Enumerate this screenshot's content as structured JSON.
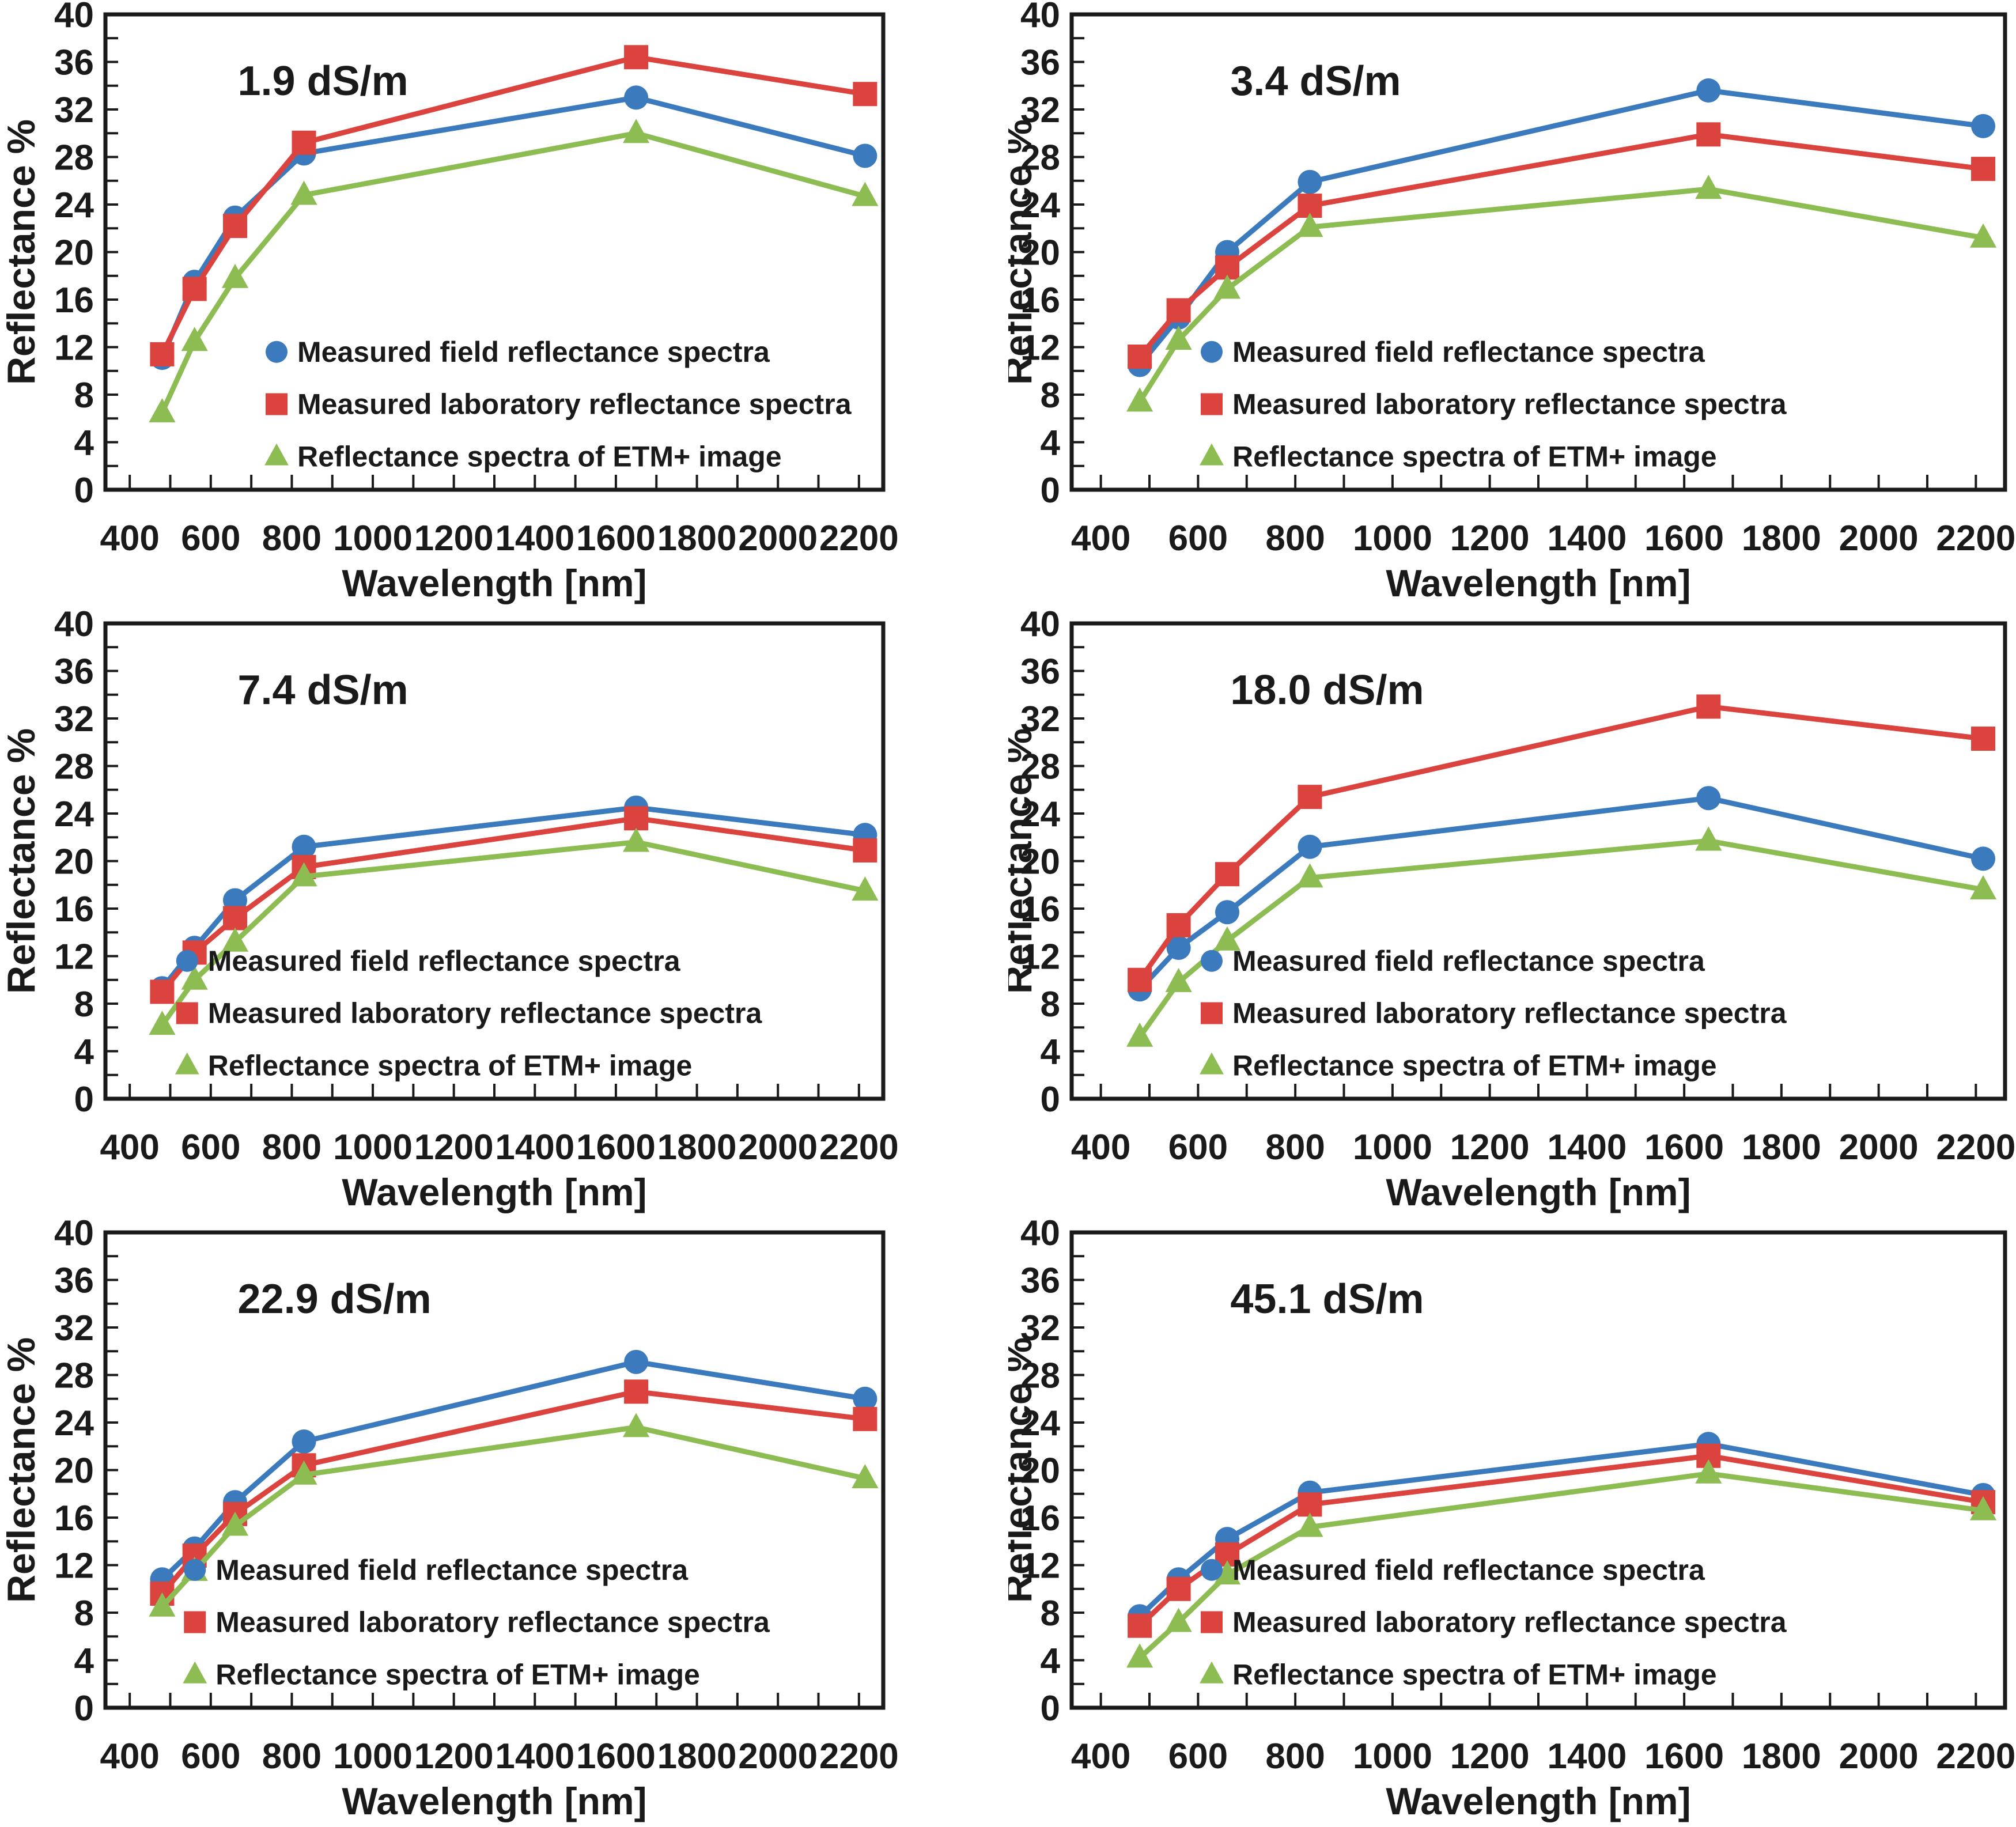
{
  "figure": {
    "layout": "3 rows x 2 columns of line charts",
    "background": "#ffffff",
    "text_color": "#1a1a1a",
    "series_colors": {
      "field": "#3a7abd",
      "lab": "#da433e",
      "etm": "#8dbc53"
    },
    "marker_shapes": {
      "field": "circle",
      "lab": "square",
      "etm": "triangle"
    },
    "legend_labels": [
      "Measured field reflectance spectra",
      "Measured laboratory reflectance spectra",
      "Reflectance spectra of ETM+ image"
    ]
  },
  "chart_data": [
    {
      "type": "line",
      "title": "1.9 dS/m",
      "xlabel": "Wavelength [nm]",
      "ylabel": "Reflectance %",
      "xlim": [
        340,
        2260
      ],
      "ylim": [
        0,
        40
      ],
      "x_ticks_labeled": [
        400,
        600,
        800,
        1000,
        1200,
        1400,
        1600,
        1800,
        2000,
        2200
      ],
      "x_minor_tick_step": 100,
      "y_ticks_labeled": [
        0,
        4,
        8,
        12,
        16,
        20,
        24,
        28,
        32,
        36,
        40
      ],
      "y_minor_tick_step": 2,
      "grid": false,
      "legend_position": "inside-lower",
      "x": [
        480,
        560,
        660,
        830,
        1650,
        2215
      ],
      "series": [
        {
          "name": "Measured field reflectance spectra",
          "key": "field",
          "marker": "circle",
          "values": [
            11.1,
            17.5,
            22.9,
            28.3,
            33.0,
            28.1
          ]
        },
        {
          "name": "Measured laboratory reflectance spectra",
          "key": "lab",
          "marker": "square",
          "values": [
            11.4,
            16.9,
            22.2,
            29.2,
            36.4,
            33.3
          ]
        },
        {
          "name": "Reflectance spectra of ETM+ image",
          "key": "etm",
          "marker": "triangle",
          "values": [
            6.5,
            12.5,
            17.8,
            24.8,
            30.0,
            24.7
          ]
        }
      ]
    },
    {
      "type": "line",
      "title": "3.4 dS/m",
      "xlabel": "Wavelength [nm]",
      "ylabel": "Reflectance %",
      "xlim": [
        340,
        2260
      ],
      "ylim": [
        0,
        40
      ],
      "x_ticks_labeled": [
        400,
        600,
        800,
        1000,
        1200,
        1400,
        1600,
        1800,
        2000,
        2200
      ],
      "x_minor_tick_step": 100,
      "y_ticks_labeled": [
        0,
        4,
        8,
        12,
        16,
        20,
        24,
        28,
        32,
        36,
        40
      ],
      "y_minor_tick_step": 2,
      "grid": false,
      "legend_position": "inside-lower",
      "x": [
        480,
        560,
        660,
        830,
        1650,
        2215
      ],
      "series": [
        {
          "name": "Measured field reflectance spectra",
          "key": "field",
          "marker": "circle",
          "values": [
            10.5,
            14.5,
            20.0,
            25.9,
            33.6,
            30.6
          ]
        },
        {
          "name": "Measured laboratory reflectance spectra",
          "key": "lab",
          "marker": "square",
          "values": [
            11.2,
            15.1,
            18.7,
            23.9,
            29.9,
            27.0
          ]
        },
        {
          "name": "Reflectance spectra of ETM+ image",
          "key": "etm",
          "marker": "triangle",
          "values": [
            7.4,
            12.6,
            16.9,
            22.1,
            25.3,
            21.2
          ]
        }
      ]
    },
    {
      "type": "line",
      "title": "7.4 dS/m",
      "xlabel": "Wavelength [nm]",
      "ylabel": "Reflectance %",
      "xlim": [
        340,
        2260
      ],
      "ylim": [
        0,
        40
      ],
      "x_ticks_labeled": [
        400,
        600,
        800,
        1000,
        1200,
        1400,
        1600,
        1800,
        2000,
        2200
      ],
      "x_minor_tick_step": 100,
      "y_ticks_labeled": [
        0,
        4,
        8,
        12,
        16,
        20,
        24,
        28,
        32,
        36,
        40
      ],
      "y_minor_tick_step": 2,
      "grid": false,
      "legend_position": "inside-lower",
      "x": [
        480,
        560,
        660,
        830,
        1650,
        2215
      ],
      "series": [
        {
          "name": "Measured field reflectance spectra",
          "key": "field",
          "marker": "circle",
          "values": [
            9.3,
            12.7,
            16.7,
            21.2,
            24.5,
            22.2
          ]
        },
        {
          "name": "Measured laboratory reflectance spectra",
          "key": "lab",
          "marker": "square",
          "values": [
            9.0,
            12.3,
            15.2,
            19.5,
            23.6,
            20.9
          ]
        },
        {
          "name": "Reflectance spectra of ETM+ image",
          "key": "etm",
          "marker": "triangle",
          "values": [
            6.2,
            10.0,
            13.2,
            18.7,
            21.6,
            17.5
          ]
        }
      ]
    },
    {
      "type": "line",
      "title": "18.0 dS/m",
      "xlabel": "Wavelength [nm]",
      "ylabel": "Reflectance %",
      "xlim": [
        340,
        2260
      ],
      "ylim": [
        0,
        40
      ],
      "x_ticks_labeled": [
        400,
        600,
        800,
        1000,
        1200,
        1400,
        1600,
        1800,
        2000,
        2200
      ],
      "x_minor_tick_step": 100,
      "y_ticks_labeled": [
        0,
        4,
        8,
        12,
        16,
        20,
        24,
        28,
        32,
        36,
        40
      ],
      "y_minor_tick_step": 2,
      "grid": false,
      "legend_position": "inside-lower",
      "x": [
        480,
        560,
        660,
        830,
        1650,
        2215
      ],
      "series": [
        {
          "name": "Measured field reflectance spectra",
          "key": "field",
          "marker": "circle",
          "values": [
            9.2,
            12.7,
            15.7,
            21.2,
            25.3,
            20.2
          ]
        },
        {
          "name": "Measured laboratory reflectance spectra",
          "key": "lab",
          "marker": "square",
          "values": [
            10.0,
            14.6,
            18.9,
            25.4,
            33.0,
            30.3
          ]
        },
        {
          "name": "Reflectance spectra of ETM+ image",
          "key": "etm",
          "marker": "triangle",
          "values": [
            5.2,
            9.8,
            13.3,
            18.6,
            21.7,
            17.6
          ]
        }
      ]
    },
    {
      "type": "line",
      "title": "22.9 dS/m",
      "xlabel": "Wavelength [nm]",
      "ylabel": "Reflectance %",
      "xlim": [
        340,
        2260
      ],
      "ylim": [
        0,
        40
      ],
      "x_ticks_labeled": [
        400,
        600,
        800,
        1000,
        1200,
        1400,
        1600,
        1800,
        2000,
        2200
      ],
      "x_minor_tick_step": 100,
      "y_ticks_labeled": [
        0,
        4,
        8,
        12,
        16,
        20,
        24,
        28,
        32,
        36,
        40
      ],
      "y_minor_tick_step": 2,
      "grid": false,
      "legend_position": "inside-lower",
      "x": [
        480,
        560,
        660,
        830,
        1650,
        2215
      ],
      "series": [
        {
          "name": "Measured field reflectance spectra",
          "key": "field",
          "marker": "circle",
          "values": [
            10.8,
            13.4,
            17.3,
            22.4,
            29.1,
            26.0
          ]
        },
        {
          "name": "Measured laboratory reflectance spectra",
          "key": "lab",
          "marker": "square",
          "values": [
            9.6,
            12.8,
            16.3,
            20.4,
            26.6,
            24.3
          ]
        },
        {
          "name": "Reflectance spectra of ETM+ image",
          "key": "etm",
          "marker": "triangle",
          "values": [
            8.5,
            11.5,
            15.3,
            19.6,
            23.6,
            19.3
          ]
        }
      ]
    },
    {
      "type": "line",
      "title": "45.1 dS/m",
      "xlabel": "Wavelength [nm]",
      "ylabel": "Reflectance %",
      "xlim": [
        340,
        2260
      ],
      "ylim": [
        0,
        40
      ],
      "x_ticks_labeled": [
        400,
        600,
        800,
        1000,
        1200,
        1400,
        1600,
        1800,
        2000,
        2200
      ],
      "x_minor_tick_step": 100,
      "y_ticks_labeled": [
        0,
        4,
        8,
        12,
        16,
        20,
        24,
        28,
        32,
        36,
        40
      ],
      "y_minor_tick_step": 2,
      "grid": false,
      "legend_position": "inside-lower",
      "x": [
        480,
        560,
        660,
        830,
        1650,
        2215
      ],
      "series": [
        {
          "name": "Measured field reflectance spectra",
          "key": "field",
          "marker": "circle",
          "values": [
            7.7,
            10.8,
            14.2,
            18.1,
            22.2,
            17.9
          ]
        },
        {
          "name": "Measured laboratory reflectance spectra",
          "key": "lab",
          "marker": "square",
          "values": [
            6.9,
            10.0,
            12.9,
            17.1,
            21.2,
            17.3
          ]
        },
        {
          "name": "Reflectance spectra of ETM+ image",
          "key": "etm",
          "marker": "triangle",
          "values": [
            4.2,
            7.2,
            11.2,
            15.2,
            19.7,
            16.6
          ]
        }
      ]
    }
  ]
}
